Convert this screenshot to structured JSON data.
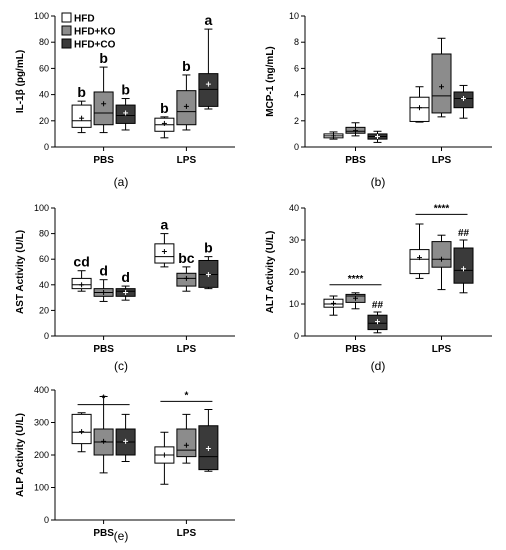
{
  "legend": [
    {
      "label": "HFD",
      "color": "#ffffff"
    },
    {
      "label": "HFD+KO",
      "color": "#8c8c8c"
    },
    {
      "label": "HFD+CO",
      "color": "#3a3a3a"
    }
  ],
  "chart_data": [
    {
      "type": "boxplot",
      "panel": "(a)",
      "ylabel": "IL-1β (pg/mL)",
      "ylim": [
        0,
        100
      ],
      "yticks": [
        0,
        20,
        40,
        60,
        80,
        100
      ],
      "categories": [
        "PBS",
        "LPS"
      ],
      "series_names": [
        "HFD",
        "HFD+KO",
        "HFD+CO"
      ],
      "boxes": [
        {
          "category": "PBS",
          "series": "HFD",
          "min": 11,
          "q1": 15,
          "median": 20,
          "q3": 32,
          "max": 35,
          "mean": 22,
          "label": "b"
        },
        {
          "category": "PBS",
          "series": "HFD+KO",
          "min": 11,
          "q1": 17,
          "median": 26,
          "q3": 42,
          "max": 61,
          "mean": 33,
          "label": "b"
        },
        {
          "category": "PBS",
          "series": "HFD+CO",
          "min": 13,
          "q1": 18,
          "median": 24,
          "q3": 32,
          "max": 37,
          "mean": 26,
          "label": "b"
        },
        {
          "category": "LPS",
          "series": "HFD",
          "min": 7,
          "q1": 12,
          "median": 17,
          "q3": 22,
          "max": 23,
          "mean": 18,
          "label": "b"
        },
        {
          "category": "LPS",
          "series": "HFD+KO",
          "min": 13,
          "q1": 17,
          "median": 27,
          "q3": 43,
          "max": 55,
          "mean": 31,
          "label": "b"
        },
        {
          "category": "LPS",
          "series": "HFD+CO",
          "min": 29,
          "q1": 31,
          "median": 44,
          "q3": 56,
          "max": 90,
          "mean": 48,
          "label": "a"
        }
      ]
    },
    {
      "type": "boxplot",
      "panel": "(b)",
      "ylabel": "MCP-1 (ng/mL)",
      "ylim": [
        0,
        10
      ],
      "yticks": [
        0,
        2,
        4,
        6,
        8,
        10
      ],
      "categories": [
        "PBS",
        "LPS"
      ],
      "series_names": [
        "HFD",
        "HFD+KO",
        "HFD+CO"
      ],
      "boxes": [
        {
          "category": "PBS",
          "series": "HFD",
          "min": 0.6,
          "q1": 0.7,
          "median": 0.85,
          "q3": 1.0,
          "max": 1.15,
          "mean": 0.85
        },
        {
          "category": "PBS",
          "series": "HFD+KO",
          "min": 0.85,
          "q1": 1.05,
          "median": 1.2,
          "q3": 1.5,
          "max": 1.85,
          "mean": 1.25
        },
        {
          "category": "PBS",
          "series": "HFD+CO",
          "min": 0.35,
          "q1": 0.6,
          "median": 0.8,
          "q3": 1.0,
          "max": 1.2,
          "mean": 0.8
        },
        {
          "category": "LPS",
          "series": "HFD",
          "min": 1.9,
          "q1": 1.95,
          "median": 3.0,
          "q3": 3.8,
          "max": 4.6,
          "mean": 3.0
        },
        {
          "category": "LPS",
          "series": "HFD+KO",
          "min": 2.3,
          "q1": 2.6,
          "median": 3.9,
          "q3": 7.1,
          "max": 8.3,
          "mean": 4.6
        },
        {
          "category": "LPS",
          "series": "HFD+CO",
          "min": 2.2,
          "q1": 3.0,
          "median": 3.7,
          "q3": 4.2,
          "max": 4.7,
          "mean": 3.7
        }
      ]
    },
    {
      "type": "boxplot",
      "panel": "(c)",
      "ylabel": "AST Activity (U/L)",
      "ylim": [
        0,
        100
      ],
      "yticks": [
        0,
        20,
        40,
        60,
        80,
        100
      ],
      "categories": [
        "PBS",
        "LPS"
      ],
      "series_names": [
        "HFD",
        "HFD+KO",
        "HFD+CO"
      ],
      "boxes": [
        {
          "category": "PBS",
          "series": "HFD",
          "min": 35,
          "q1": 37,
          "median": 40,
          "q3": 45,
          "max": 51,
          "mean": 40,
          "label": "cd"
        },
        {
          "category": "PBS",
          "series": "HFD+KO",
          "min": 27,
          "q1": 31,
          "median": 34,
          "q3": 37,
          "max": 44,
          "mean": 34,
          "label": "d"
        },
        {
          "category": "PBS",
          "series": "HFD+CO",
          "min": 28,
          "q1": 31,
          "median": 35,
          "q3": 37,
          "max": 39,
          "mean": 34,
          "label": "d"
        },
        {
          "category": "LPS",
          "series": "HFD",
          "min": 54,
          "q1": 57,
          "median": 62,
          "q3": 72,
          "max": 80,
          "mean": 66,
          "label": "a"
        },
        {
          "category": "LPS",
          "series": "HFD+KO",
          "min": 35,
          "q1": 39,
          "median": 45,
          "q3": 49,
          "max": 54,
          "mean": 45,
          "label": "bc"
        },
        {
          "category": "LPS",
          "series": "HFD+CO",
          "min": 37,
          "q1": 38,
          "median": 48,
          "q3": 59,
          "max": 62,
          "mean": 48,
          "label": "b"
        }
      ]
    },
    {
      "type": "boxplot",
      "panel": "(d)",
      "ylabel": "ALT Activity (U/L)",
      "ylim": [
        0,
        40
      ],
      "yticks": [
        0,
        10,
        20,
        30,
        40
      ],
      "categories": [
        "PBS",
        "LPS"
      ],
      "series_names": [
        "HFD",
        "HFD+KO",
        "HFD+CO"
      ],
      "boxes": [
        {
          "category": "PBS",
          "series": "HFD",
          "min": 6.5,
          "q1": 9,
          "median": 10,
          "q3": 11.5,
          "max": 12.5,
          "mean": 10.2
        },
        {
          "category": "PBS",
          "series": "HFD+KO",
          "min": 8.5,
          "q1": 10.5,
          "median": 12.5,
          "q3": 13,
          "max": 13.5,
          "mean": 11.8
        },
        {
          "category": "PBS",
          "series": "HFD+CO",
          "min": 1,
          "q1": 2,
          "median": 4,
          "q3": 6.5,
          "max": 7.5,
          "mean": 4.5,
          "label": "##"
        },
        {
          "category": "LPS",
          "series": "HFD",
          "min": 18,
          "q1": 19.5,
          "median": 24,
          "q3": 27,
          "max": 35,
          "mean": 24.5
        },
        {
          "category": "LPS",
          "series": "HFD+KO",
          "min": 14.5,
          "q1": 21.5,
          "median": 24,
          "q3": 29.5,
          "max": 31.5,
          "mean": 24
        },
        {
          "category": "LPS",
          "series": "HFD+CO",
          "min": 13.5,
          "q1": 16.5,
          "median": 20.5,
          "q3": 27.5,
          "max": 30,
          "mean": 21,
          "label": "##"
        }
      ],
      "brackets": [
        {
          "category": "PBS",
          "label": "****",
          "y": 16
        },
        {
          "category": "LPS",
          "label": "****",
          "y": 38
        }
      ]
    },
    {
      "type": "boxplot",
      "panel": "(e)",
      "ylabel": "ALP Activity (U/L)",
      "ylim": [
        0,
        400
      ],
      "yticks": [
        0,
        100,
        200,
        300,
        400
      ],
      "categories": [
        "PBS",
        "LPS"
      ],
      "series_names": [
        "HFD",
        "HFD+KO",
        "HFD+CO"
      ],
      "boxes": [
        {
          "category": "PBS",
          "series": "HFD",
          "min": 210,
          "q1": 235,
          "median": 270,
          "q3": 325,
          "max": 330,
          "mean": 272
        },
        {
          "category": "PBS",
          "series": "HFD+KO",
          "min": 145,
          "q1": 200,
          "median": 240,
          "q3": 280,
          "max": 380,
          "mean": 242
        },
        {
          "category": "PBS",
          "series": "HFD+CO",
          "min": 180,
          "q1": 200,
          "median": 240,
          "q3": 280,
          "max": 325,
          "mean": 242
        },
        {
          "category": "LPS",
          "series": "HFD",
          "min": 110,
          "q1": 175,
          "median": 200,
          "q3": 225,
          "max": 270,
          "mean": 200
        },
        {
          "category": "LPS",
          "series": "HFD+KO",
          "min": 175,
          "q1": 195,
          "median": 215,
          "q3": 280,
          "max": 325,
          "mean": 230
        },
        {
          "category": "LPS",
          "series": "HFD+CO",
          "min": 150,
          "q1": 155,
          "median": 195,
          "q3": 290,
          "max": 340,
          "mean": 220
        }
      ],
      "brackets": [
        {
          "category": "PBS",
          "label": "*",
          "y": 355
        },
        {
          "category": "LPS",
          "label": "*",
          "y": 365
        }
      ]
    }
  ]
}
